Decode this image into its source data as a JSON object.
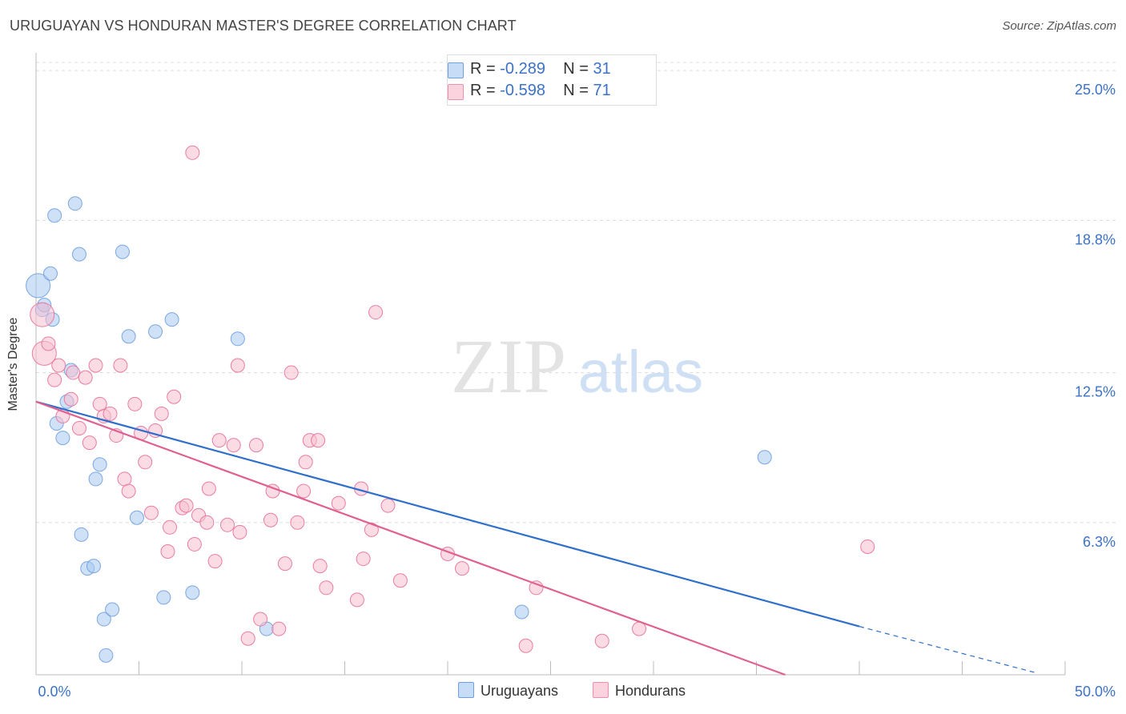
{
  "title": "URUGUAYAN VS HONDURAN MASTER'S DEGREE CORRELATION CHART",
  "source": "Source: ZipAtlas.com",
  "watermark": {
    "zip": "ZIP",
    "atlas": "atlas"
  },
  "legend": {
    "rows": [
      {
        "r_label": "R = ",
        "r_value": "-0.289",
        "n_label": "N = ",
        "n_value": "31",
        "color": "#a8c8f0",
        "border": "#6f9fe0"
      },
      {
        "r_label": "R = ",
        "r_value": "-0.598",
        "n_label": "N = ",
        "n_value": "71",
        "color": "#f8c0d0",
        "border": "#ef8fac"
      }
    ]
  },
  "bottom_legend": [
    {
      "label": "Uruguayans",
      "color": "#a8c8f0",
      "border": "#6f9fe0"
    },
    {
      "label": "Hondurans",
      "color": "#f8c0d0",
      "border": "#ef8fac"
    }
  ],
  "chart_data": {
    "type": "scatter",
    "title": "URUGUAYAN VS HONDURAN MASTER'S DEGREE CORRELATION CHART",
    "xlabel": "",
    "ylabel": "Master's Degree",
    "xlim": [
      0,
      50
    ],
    "ylim": [
      0,
      25.6
    ],
    "x_tick_labels": [
      "0.0%",
      "50.0%"
    ],
    "y_ticks": [
      6.3,
      12.5,
      18.8,
      25.0
    ],
    "y_tick_labels": [
      "6.3%",
      "12.5%",
      "18.8%",
      "25.0%"
    ],
    "grid": true,
    "series": [
      {
        "name": "Uruguayans",
        "color": "#6f9fe0",
        "fill": "#a8c8f0",
        "points": [
          [
            0.1,
            16.1
          ],
          [
            0.3,
            15.1
          ],
          [
            0.4,
            15.3
          ],
          [
            0.7,
            16.6
          ],
          [
            0.8,
            14.7
          ],
          [
            0.9,
            19.0
          ],
          [
            1.0,
            10.4
          ],
          [
            1.3,
            9.8
          ],
          [
            1.5,
            11.3
          ],
          [
            1.7,
            12.6
          ],
          [
            1.9,
            19.5
          ],
          [
            2.1,
            17.4
          ],
          [
            2.2,
            5.8
          ],
          [
            2.5,
            4.4
          ],
          [
            2.8,
            4.5
          ],
          [
            2.9,
            8.1
          ],
          [
            3.1,
            8.7
          ],
          [
            3.3,
            2.3
          ],
          [
            3.4,
            0.8
          ],
          [
            3.7,
            2.7
          ],
          [
            4.2,
            17.5
          ],
          [
            4.5,
            14.0
          ],
          [
            4.9,
            6.5
          ],
          [
            5.8,
            14.2
          ],
          [
            6.2,
            3.2
          ],
          [
            6.6,
            14.7
          ],
          [
            7.6,
            3.4
          ],
          [
            9.8,
            13.9
          ],
          [
            11.2,
            1.9
          ],
          [
            23.6,
            2.6
          ],
          [
            35.4,
            9.0
          ]
        ],
        "trend": {
          "x": [
            0,
            40
          ],
          "y": [
            11.3,
            2.0
          ],
          "dashed_to": {
            "x": [
              40,
              48.5
            ],
            "y": [
              2.0,
              0.1
            ]
          }
        }
      },
      {
        "name": "Hondurans",
        "color": "#e87099",
        "fill": "#f8c0d0",
        "points": [
          [
            0.3,
            14.9
          ],
          [
            0.4,
            13.3
          ],
          [
            0.6,
            13.7
          ],
          [
            0.9,
            12.2
          ],
          [
            1.1,
            12.8
          ],
          [
            1.3,
            10.7
          ],
          [
            1.7,
            11.4
          ],
          [
            1.8,
            12.5
          ],
          [
            2.1,
            10.2
          ],
          [
            2.4,
            12.3
          ],
          [
            2.6,
            9.6
          ],
          [
            2.9,
            12.8
          ],
          [
            3.1,
            11.2
          ],
          [
            3.3,
            10.7
          ],
          [
            3.6,
            10.8
          ],
          [
            3.9,
            9.9
          ],
          [
            4.1,
            12.8
          ],
          [
            4.3,
            8.1
          ],
          [
            4.5,
            7.6
          ],
          [
            4.8,
            11.2
          ],
          [
            5.1,
            10.0
          ],
          [
            5.3,
            8.8
          ],
          [
            5.6,
            6.7
          ],
          [
            5.8,
            10.1
          ],
          [
            6.1,
            10.8
          ],
          [
            6.4,
            5.1
          ],
          [
            6.5,
            6.1
          ],
          [
            6.7,
            11.5
          ],
          [
            7.1,
            6.9
          ],
          [
            7.3,
            7.0
          ],
          [
            7.6,
            21.6
          ],
          [
            7.7,
            5.4
          ],
          [
            7.9,
            6.6
          ],
          [
            8.3,
            6.3
          ],
          [
            8.4,
            7.7
          ],
          [
            8.7,
            4.7
          ],
          [
            8.9,
            9.7
          ],
          [
            9.3,
            6.2
          ],
          [
            9.6,
            9.5
          ],
          [
            9.8,
            12.8
          ],
          [
            9.9,
            5.9
          ],
          [
            10.3,
            1.5
          ],
          [
            10.7,
            9.5
          ],
          [
            10.9,
            2.3
          ],
          [
            11.4,
            6.4
          ],
          [
            11.5,
            7.6
          ],
          [
            11.8,
            1.9
          ],
          [
            12.1,
            4.6
          ],
          [
            12.4,
            12.5
          ],
          [
            12.7,
            6.3
          ],
          [
            13.0,
            7.6
          ],
          [
            13.1,
            8.8
          ],
          [
            13.3,
            9.7
          ],
          [
            13.7,
            9.7
          ],
          [
            13.8,
            4.5
          ],
          [
            14.1,
            3.6
          ],
          [
            14.7,
            7.1
          ],
          [
            15.6,
            3.1
          ],
          [
            15.8,
            7.7
          ],
          [
            15.9,
            4.8
          ],
          [
            16.3,
            6.0
          ],
          [
            16.5,
            15.0
          ],
          [
            17.1,
            7.0
          ],
          [
            17.7,
            3.9
          ],
          [
            20.0,
            5.0
          ],
          [
            20.7,
            4.4
          ],
          [
            23.8,
            1.2
          ],
          [
            24.3,
            3.6
          ],
          [
            27.5,
            1.4
          ],
          [
            29.3,
            1.9
          ],
          [
            40.4,
            5.3
          ]
        ],
        "trend": {
          "x": [
            0,
            36.4
          ],
          "y": [
            11.3,
            0.0
          ]
        }
      }
    ]
  }
}
